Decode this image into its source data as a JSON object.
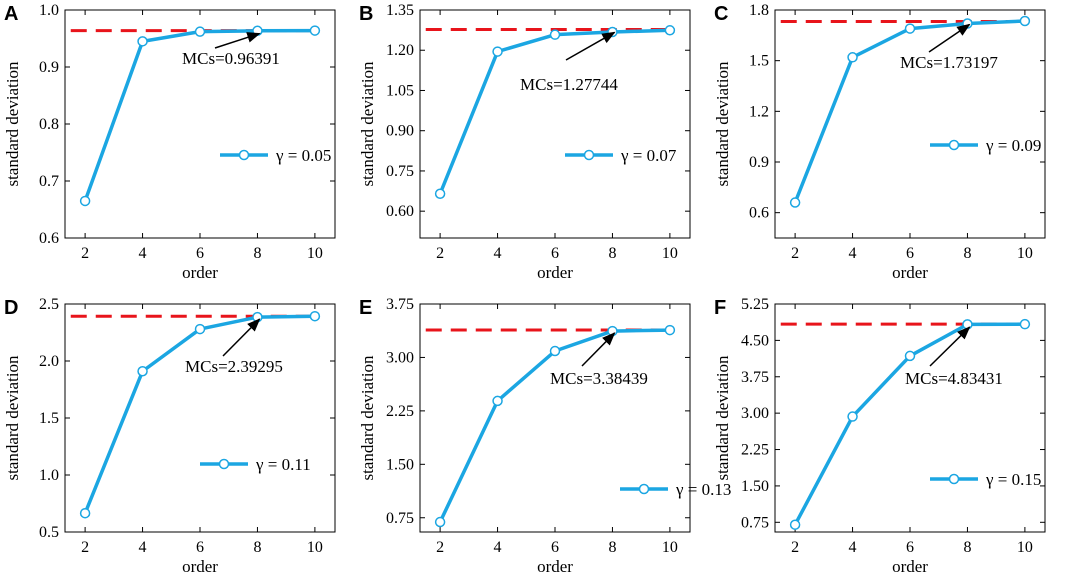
{
  "figure": {
    "background": "#ffffff"
  },
  "colors": {
    "series": "#1ba6e2",
    "reference": "#e8141b",
    "axis": "#000000",
    "annotation": "#000000"
  },
  "chart_data": [
    {
      "type": "line",
      "panel_label": "A",
      "title": "",
      "xlabel": "order",
      "ylabel": "standard deviation",
      "xlim": [
        1.3,
        10.7
      ],
      "ylim": [
        0.6,
        1.0
      ],
      "xticks": [
        2,
        4,
        6,
        8,
        10
      ],
      "xtick_labels": [
        "2",
        "4",
        "6",
        "8",
        "10"
      ],
      "yticks": [
        0.6,
        0.7,
        0.8,
        0.9,
        1.0
      ],
      "ytick_labels": [
        "0.6",
        "0.7",
        "0.8",
        "0.9",
        "1.0"
      ],
      "series": [
        {
          "name": "γ = 0.05",
          "x": [
            2,
            4,
            6,
            8,
            10
          ],
          "values": [
            0.665,
            0.945,
            0.962,
            0.9635,
            0.9639
          ]
        }
      ],
      "legend": {
        "label": "γ = 0.05",
        "placement": "center-right"
      },
      "reference_line": {
        "value": 0.96391,
        "style": "dashed",
        "from_x": 1.5,
        "to_x": 10.2
      },
      "annotation": {
        "text": "MCs=0.96391",
        "points_to_x": 8
      }
    },
    {
      "type": "line",
      "panel_label": "B",
      "title": "",
      "xlabel": "order",
      "ylabel": "standard deviation",
      "xlim": [
        1.3,
        10.7
      ],
      "ylim": [
        0.5,
        1.35
      ],
      "xticks": [
        2,
        4,
        6,
        8,
        10
      ],
      "xtick_labels": [
        "2",
        "4",
        "6",
        "8",
        "10"
      ],
      "yticks": [
        0.6,
        0.75,
        0.9,
        1.05,
        1.2,
        1.35
      ],
      "ytick_labels": [
        "0.60",
        "0.75",
        "0.90",
        "1.05",
        "1.20",
        "1.35"
      ],
      "series": [
        {
          "name": "γ = 0.07",
          "x": [
            2,
            4,
            6,
            8,
            10
          ],
          "values": [
            0.665,
            1.195,
            1.258,
            1.268,
            1.2744
          ]
        }
      ],
      "legend": {
        "label": "γ = 0.07",
        "placement": "center-right"
      },
      "reference_line": {
        "value": 1.27744,
        "style": "dashed",
        "from_x": 1.5,
        "to_x": 10.2
      },
      "annotation": {
        "text": "MCs=1.27744",
        "points_to_x": 8
      }
    },
    {
      "type": "line",
      "panel_label": "C",
      "title": "",
      "xlabel": "order",
      "ylabel": "standard deviation",
      "xlim": [
        1.3,
        10.7
      ],
      "ylim": [
        0.45,
        1.8
      ],
      "xticks": [
        2,
        4,
        6,
        8,
        10
      ],
      "xtick_labels": [
        "2",
        "4",
        "6",
        "8",
        "10"
      ],
      "yticks": [
        0.6,
        0.9,
        1.2,
        1.5,
        1.8
      ],
      "ytick_labels": [
        "0.6",
        "0.9",
        "1.2",
        "1.5",
        "1.8"
      ],
      "series": [
        {
          "name": "γ = 0.09",
          "x": [
            2,
            4,
            6,
            8,
            10
          ],
          "values": [
            0.66,
            1.52,
            1.69,
            1.72,
            1.735
          ]
        }
      ],
      "legend": {
        "label": "γ = 0.09",
        "placement": "center-right"
      },
      "reference_line": {
        "value": 1.73197,
        "style": "dashed",
        "from_x": 1.5,
        "to_x": 10.2
      },
      "annotation": {
        "text": "MCs=1.73197",
        "points_to_x": 8
      }
    },
    {
      "type": "line",
      "panel_label": "D",
      "title": "",
      "xlabel": "order",
      "ylabel": "standard deviation",
      "xlim": [
        1.3,
        10.7
      ],
      "ylim": [
        0.5,
        2.5
      ],
      "xticks": [
        2,
        4,
        6,
        8,
        10
      ],
      "xtick_labels": [
        "2",
        "4",
        "6",
        "8",
        "10"
      ],
      "yticks": [
        0.5,
        1.0,
        1.5,
        2.0,
        2.5
      ],
      "ytick_labels": [
        "0.5",
        "1.0",
        "1.5",
        "2.0",
        "2.5"
      ],
      "series": [
        {
          "name": "γ = 0.11",
          "x": [
            2,
            4,
            6,
            8,
            10
          ],
          "values": [
            0.665,
            1.91,
            2.28,
            2.385,
            2.393
          ]
        }
      ],
      "legend": {
        "label": "γ = 0.11",
        "placement": "center-right"
      },
      "reference_line": {
        "value": 2.39295,
        "style": "dashed",
        "from_x": 1.5,
        "to_x": 10.2
      },
      "annotation": {
        "text": "MCs=2.39295",
        "points_to_x": 8
      }
    },
    {
      "type": "line",
      "panel_label": "E",
      "title": "",
      "xlabel": "order",
      "ylabel": "standard deviation",
      "xlim": [
        1.3,
        10.7
      ],
      "ylim": [
        0.55,
        3.75
      ],
      "xticks": [
        2,
        4,
        6,
        8,
        10
      ],
      "xtick_labels": [
        "2",
        "4",
        "6",
        "8",
        "10"
      ],
      "yticks": [
        0.75,
        1.5,
        2.25,
        3.0,
        3.75
      ],
      "ytick_labels": [
        "0.75",
        "1.50",
        "2.25",
        "3.00",
        "3.75"
      ],
      "series": [
        {
          "name": "γ = 0.13",
          "x": [
            2,
            4,
            6,
            8,
            10
          ],
          "values": [
            0.69,
            2.39,
            3.09,
            3.37,
            3.384
          ]
        }
      ],
      "legend": {
        "label": "γ = 0.13",
        "placement": "center-right"
      },
      "reference_line": {
        "value": 3.38439,
        "style": "dashed",
        "from_x": 1.5,
        "to_x": 10.2
      },
      "annotation": {
        "text": "MCs=3.38439",
        "points_to_x": 8
      }
    },
    {
      "type": "line",
      "panel_label": "F",
      "title": "",
      "xlabel": "order",
      "ylabel": "standard deviation",
      "xlim": [
        1.3,
        10.7
      ],
      "ylim": [
        0.55,
        5.25
      ],
      "xticks": [
        2,
        4,
        6,
        8,
        10
      ],
      "xtick_labels": [
        "2",
        "4",
        "6",
        "8",
        "10"
      ],
      "yticks": [
        0.75,
        1.5,
        2.25,
        3.0,
        3.75,
        4.5,
        5.25
      ],
      "ytick_labels": [
        "0.75",
        "1.50",
        "2.25",
        "3.00",
        "3.75",
        "4.50",
        "5.25"
      ],
      "series": [
        {
          "name": "γ = 0.15",
          "x": [
            2,
            4,
            6,
            8,
            10
          ],
          "values": [
            0.7,
            2.93,
            4.18,
            4.83,
            4.834
          ]
        }
      ],
      "legend": {
        "label": "γ = 0.15",
        "placement": "center-right"
      },
      "reference_line": {
        "value": 4.83431,
        "style": "dashed",
        "from_x": 1.5,
        "to_x": 10.2
      },
      "annotation": {
        "text": "MCs=4.83431",
        "points_to_x": 8
      }
    }
  ]
}
